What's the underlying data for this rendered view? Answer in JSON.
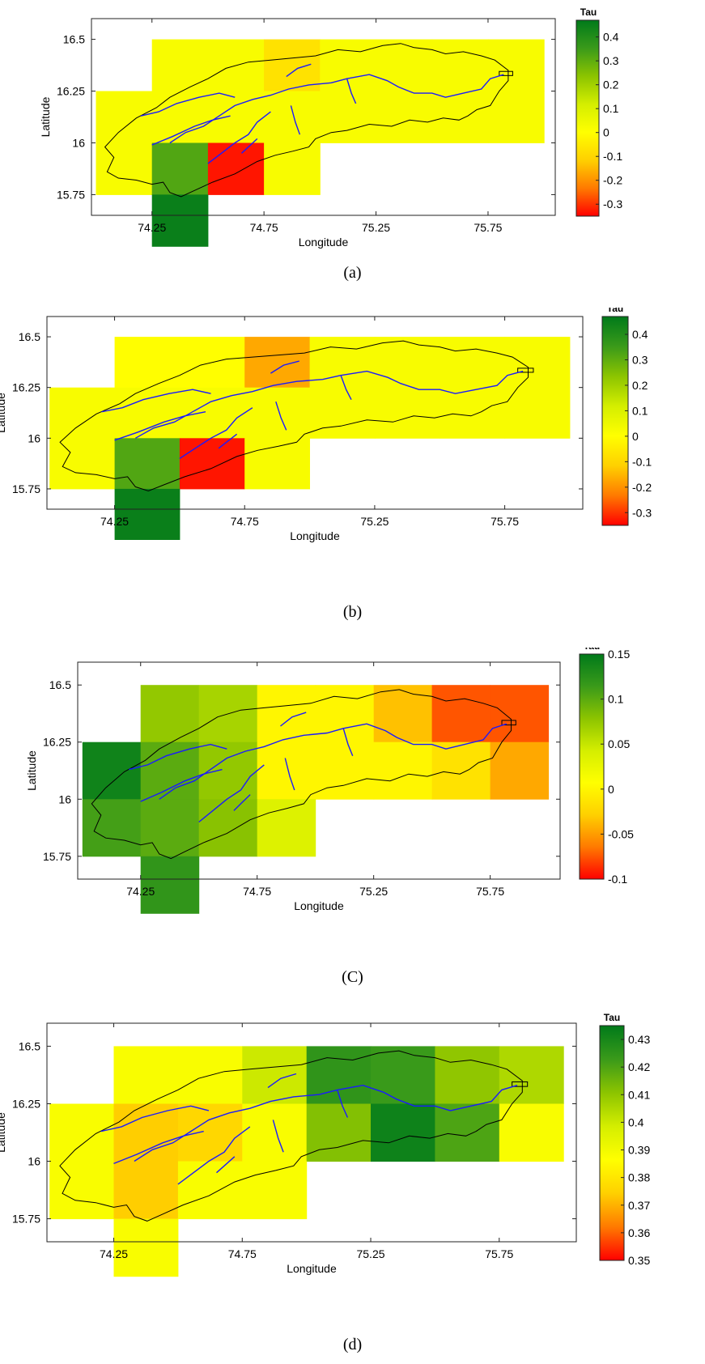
{
  "colors": {
    "river": "#1a1aff",
    "basin": "#000000",
    "scale": [
      "#ff0000",
      "#ff7a00",
      "#ffd000",
      "#ffff00",
      "#d4ee00",
      "#8cc400",
      "#3a9a1a",
      "#007a1a"
    ]
  },
  "axes": {
    "xlabel": "Longitude",
    "ylabel": "Latitude",
    "legend_title": "Tau"
  },
  "panels": [
    {
      "caption": "(a)",
      "xticks": [
        "74.25",
        "74.75",
        "75.25",
        "75.75"
      ],
      "yticks": [
        "16.5",
        "16.25",
        "16",
        "15.75"
      ],
      "cbar_ticks": [
        "0.4",
        "0.3",
        "0.2",
        "0.1",
        "0",
        "-0.1",
        "-0.2",
        "-0.3"
      ],
      "vmin": -0.35,
      "vmax": 0.47,
      "cells": [
        {
          "lon": 74.375,
          "lat": 16.375,
          "v": 0.02
        },
        {
          "lon": 74.625,
          "lat": 16.375,
          "v": 0.02
        },
        {
          "lon": 74.875,
          "lat": 16.375,
          "v": -0.07
        },
        {
          "lon": 75.125,
          "lat": 16.375,
          "v": 0.02
        },
        {
          "lon": 75.375,
          "lat": 16.375,
          "v": 0.02
        },
        {
          "lon": 75.625,
          "lat": 16.375,
          "v": 0.02
        },
        {
          "lon": 75.875,
          "lat": 16.375,
          "v": 0.02
        },
        {
          "lon": 74.125,
          "lat": 16.125,
          "v": 0.02
        },
        {
          "lon": 74.375,
          "lat": 16.125,
          "v": 0.02
        },
        {
          "lon": 74.625,
          "lat": 16.125,
          "v": 0.02
        },
        {
          "lon": 74.875,
          "lat": 16.125,
          "v": 0.02
        },
        {
          "lon": 75.125,
          "lat": 16.125,
          "v": 0.02
        },
        {
          "lon": 75.375,
          "lat": 16.125,
          "v": 0.02
        },
        {
          "lon": 75.625,
          "lat": 16.125,
          "v": 0.02
        },
        {
          "lon": 75.875,
          "lat": 16.125,
          "v": 0.02
        },
        {
          "lon": 74.125,
          "lat": 15.875,
          "v": 0.02
        },
        {
          "lon": 74.375,
          "lat": 15.875,
          "v": 0.32
        },
        {
          "lon": 74.625,
          "lat": 15.875,
          "v": -0.33
        },
        {
          "lon": 74.875,
          "lat": 15.875,
          "v": 0.02
        },
        {
          "lon": 74.375,
          "lat": 15.625,
          "v": 0.45
        }
      ]
    },
    {
      "caption": "(b)",
      "xticks": [
        "74.25",
        "74.75",
        "75.25",
        "75.75"
      ],
      "yticks": [
        "16.5",
        "16.25",
        "16",
        "15.75"
      ],
      "cbar_ticks": [
        "0.4",
        "0.3",
        "0.2",
        "0.1",
        "0",
        "-0.1",
        "-0.2",
        "-0.3"
      ],
      "vmin": -0.35,
      "vmax": 0.47,
      "cells": [
        {
          "lon": 74.375,
          "lat": 16.375,
          "v": 0.0
        },
        {
          "lon": 74.625,
          "lat": 16.375,
          "v": 0.0
        },
        {
          "lon": 74.875,
          "lat": 16.375,
          "v": -0.17
        },
        {
          "lon": 75.125,
          "lat": 16.375,
          "v": 0.02
        },
        {
          "lon": 75.375,
          "lat": 16.375,
          "v": 0.02
        },
        {
          "lon": 75.625,
          "lat": 16.375,
          "v": 0.02
        },
        {
          "lon": 75.875,
          "lat": 16.375,
          "v": 0.02
        },
        {
          "lon": 74.125,
          "lat": 16.125,
          "v": 0.02
        },
        {
          "lon": 74.375,
          "lat": 16.125,
          "v": 0.02
        },
        {
          "lon": 74.625,
          "lat": 16.125,
          "v": 0.02
        },
        {
          "lon": 74.875,
          "lat": 16.125,
          "v": 0.02
        },
        {
          "lon": 75.125,
          "lat": 16.125,
          "v": 0.02
        },
        {
          "lon": 75.375,
          "lat": 16.125,
          "v": 0.02
        },
        {
          "lon": 75.625,
          "lat": 16.125,
          "v": 0.02
        },
        {
          "lon": 75.875,
          "lat": 16.125,
          "v": 0.02
        },
        {
          "lon": 74.125,
          "lat": 15.875,
          "v": 0.02
        },
        {
          "lon": 74.375,
          "lat": 15.875,
          "v": 0.32
        },
        {
          "lon": 74.625,
          "lat": 15.875,
          "v": -0.33
        },
        {
          "lon": 74.875,
          "lat": 15.875,
          "v": 0.02
        },
        {
          "lon": 74.375,
          "lat": 15.625,
          "v": 0.45
        }
      ]
    },
    {
      "caption": "(C)",
      "xticks": [
        "74.25",
        "74.75",
        "75.25",
        "75.75"
      ],
      "yticks": [
        "16.5",
        "16.25",
        "16",
        "15.75"
      ],
      "cbar_ticks": [
        "0.15",
        "0.1",
        "0.05",
        "0",
        "-0.05",
        "-0.1"
      ],
      "vmin": -0.1,
      "vmax": 0.15,
      "cells": [
        {
          "lon": 74.375,
          "lat": 16.375,
          "v": 0.075
        },
        {
          "lon": 74.625,
          "lat": 16.375,
          "v": 0.065
        },
        {
          "lon": 74.875,
          "lat": 16.375,
          "v": 0.0
        },
        {
          "lon": 75.125,
          "lat": 16.375,
          "v": 0.0
        },
        {
          "lon": 75.375,
          "lat": 16.375,
          "v": -0.035
        },
        {
          "lon": 75.625,
          "lat": 16.375,
          "v": -0.075
        },
        {
          "lon": 75.875,
          "lat": 16.375,
          "v": -0.075
        },
        {
          "lon": 74.125,
          "lat": 16.125,
          "v": 0.14
        },
        {
          "lon": 74.375,
          "lat": 16.125,
          "v": 0.1
        },
        {
          "lon": 74.625,
          "lat": 16.125,
          "v": 0.075
        },
        {
          "lon": 74.875,
          "lat": 16.125,
          "v": 0.0
        },
        {
          "lon": 75.125,
          "lat": 16.125,
          "v": 0.0
        },
        {
          "lon": 75.375,
          "lat": 16.125,
          "v": 0.0
        },
        {
          "lon": 75.625,
          "lat": 16.125,
          "v": -0.015
        },
        {
          "lon": 75.875,
          "lat": 16.125,
          "v": -0.045
        },
        {
          "lon": 74.125,
          "lat": 15.875,
          "v": 0.11
        },
        {
          "lon": 74.375,
          "lat": 15.875,
          "v": 0.1
        },
        {
          "lon": 74.625,
          "lat": 15.875,
          "v": 0.08
        },
        {
          "lon": 74.875,
          "lat": 15.875,
          "v": 0.035
        },
        {
          "lon": 74.375,
          "lat": 15.625,
          "v": 0.12
        }
      ]
    },
    {
      "caption": "(d)",
      "xticks": [
        "74.25",
        "74.75",
        "75.25",
        "75.75"
      ],
      "yticks": [
        "16.5",
        "16.25",
        "16",
        "15.75"
      ],
      "cbar_ticks": [
        "0.43",
        "0.42",
        "0.41",
        "0.4",
        "0.39",
        "0.38",
        "0.37",
        "0.36",
        "0.35"
      ],
      "vmin": 0.35,
      "vmax": 0.435,
      "cells": [
        {
          "lon": 74.375,
          "lat": 16.375,
          "v": 0.388
        },
        {
          "lon": 74.625,
          "lat": 16.375,
          "v": 0.388
        },
        {
          "lon": 74.875,
          "lat": 16.375,
          "v": 0.4
        },
        {
          "lon": 75.125,
          "lat": 16.375,
          "v": 0.425
        },
        {
          "lon": 75.375,
          "lat": 16.375,
          "v": 0.423
        },
        {
          "lon": 75.625,
          "lat": 16.375,
          "v": 0.41
        },
        {
          "lon": 75.875,
          "lat": 16.375,
          "v": 0.405
        },
        {
          "lon": 74.125,
          "lat": 16.125,
          "v": 0.388
        },
        {
          "lon": 74.375,
          "lat": 16.125,
          "v": 0.374
        },
        {
          "lon": 74.625,
          "lat": 16.125,
          "v": 0.376
        },
        {
          "lon": 74.875,
          "lat": 16.125,
          "v": 0.388
        },
        {
          "lon": 75.125,
          "lat": 16.125,
          "v": 0.412
        },
        {
          "lon": 75.375,
          "lat": 16.125,
          "v": 0.432
        },
        {
          "lon": 75.625,
          "lat": 16.125,
          "v": 0.42
        },
        {
          "lon": 75.875,
          "lat": 16.125,
          "v": 0.388
        },
        {
          "lon": 74.125,
          "lat": 15.875,
          "v": 0.388
        },
        {
          "lon": 74.375,
          "lat": 15.875,
          "v": 0.374
        },
        {
          "lon": 74.625,
          "lat": 15.875,
          "v": 0.388
        },
        {
          "lon": 74.875,
          "lat": 15.875,
          "v": 0.388
        },
        {
          "lon": 74.375,
          "lat": 15.625,
          "v": 0.388
        }
      ]
    }
  ]
}
